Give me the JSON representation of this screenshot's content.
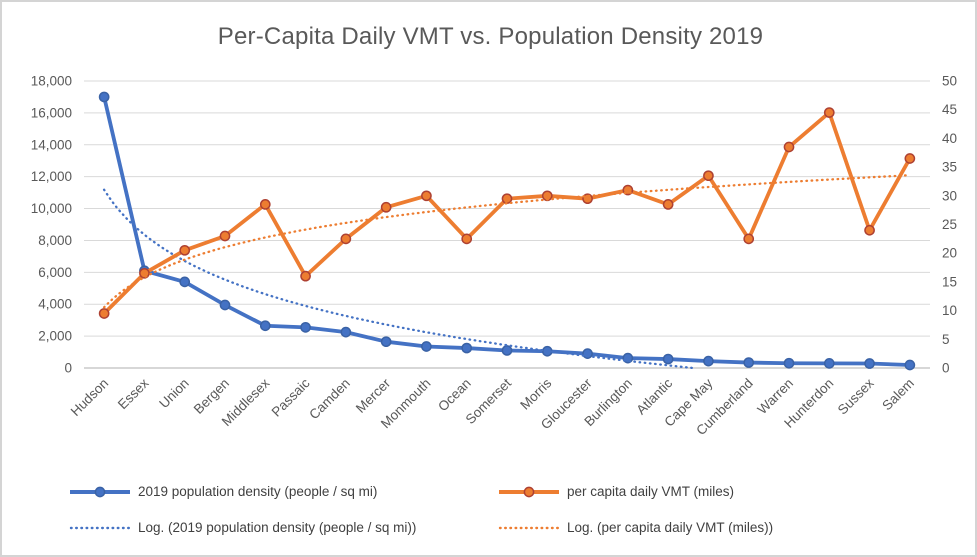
{
  "title": "Per-Capita Daily VMT vs. Population Density 2019",
  "colors": {
    "blue": "#4472C4",
    "blue_marker_stroke": "#3A62A5",
    "orange": "#ED7D31",
    "orange_marker_stroke": "#AE4132",
    "gridline": "#D9D9D9",
    "axis_line": "#BFBFBF",
    "tick_label": "#595959",
    "title_text": "#595959",
    "legend_text": "#404040",
    "frame_border": "#D4D4D4"
  },
  "chart_data": {
    "type": "line",
    "title": "Per-Capita Daily VMT vs. Population Density 2019",
    "grid": "horizontal",
    "legend_position": "bottom",
    "categories": [
      "Hudson",
      "Essex",
      "Union",
      "Bergen",
      "Middlesex",
      "Passaic",
      "Camden",
      "Mercer",
      "Monmouth",
      "Ocean",
      "Somerset",
      "Morris",
      "Gloucester",
      "Burlington",
      "Atlantic",
      "Cape May",
      "Cumberland",
      "Warren",
      "Hunterdon",
      "Sussex",
      "Salem"
    ],
    "series": [
      {
        "name": "2019 population density (people / sq mi)",
        "axis": "left",
        "color": "#4472C4",
        "marker": "circle",
        "values": [
          17000,
          6100,
          5400,
          3950,
          2650,
          2550,
          2250,
          1650,
          1350,
          1250,
          1100,
          1050,
          900,
          620,
          560,
          430,
          340,
          300,
          290,
          280,
          190
        ]
      },
      {
        "name": "per capita daily VMT (miles)",
        "axis": "right",
        "color": "#ED7D31",
        "marker": "circle",
        "values": [
          9.5,
          16.5,
          20.5,
          23,
          28.5,
          16,
          22.5,
          28,
          30,
          22.5,
          29.5,
          30,
          29.5,
          31,
          28.5,
          33.5,
          22.5,
          38.5,
          44.5,
          24,
          36.5
        ]
      }
    ],
    "trendlines": [
      {
        "label": "Log. (2019 population density (people / sq mi))",
        "fit": "logarithmic",
        "series_index": 0,
        "style": "dotted",
        "color": "#4472C4"
      },
      {
        "label": "Log. (per capita daily VMT (miles))",
        "fit": "logarithmic",
        "series_index": 1,
        "style": "dotted",
        "color": "#ED7D31"
      }
    ],
    "left_axis": {
      "min": 0,
      "max": 18000,
      "step": 2000,
      "tick_labels": [
        "18,000",
        "16,000",
        "14,000",
        "12,000",
        "10,000",
        "8,000",
        "6,000",
        "4,000",
        "2,000",
        "0"
      ]
    },
    "right_axis": {
      "min": 0,
      "max": 50,
      "step": 5,
      "tick_labels": [
        "50",
        "45",
        "40",
        "35",
        "30",
        "25",
        "20",
        "15",
        "10",
        "5",
        "0"
      ]
    }
  },
  "legend": {
    "items": [
      {
        "label": "2019 population density (people / sq mi)",
        "swatch": "line-marker",
        "color": "#4472C4",
        "marker_stroke": "#3A62A5"
      },
      {
        "label": "per capita daily VMT (miles)",
        "swatch": "line-marker",
        "color": "#ED7D31",
        "marker_stroke": "#AE4132"
      },
      {
        "label": "Log. (2019 population density (people / sq mi))",
        "swatch": "dotted-line",
        "color": "#4472C4",
        "marker_stroke": "#4472C4"
      },
      {
        "label": "Log. (per capita daily VMT (miles))",
        "swatch": "dotted-line",
        "color": "#ED7D31",
        "marker_stroke": "#ED7D31"
      }
    ]
  }
}
